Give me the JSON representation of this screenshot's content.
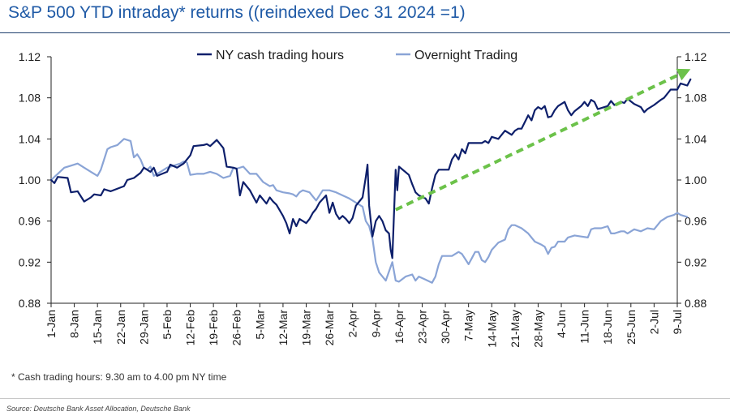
{
  "title": "S&P 500 YTD intraday* returns ((reindexed Dec 31 2024 =1)",
  "footnote": "* Cash trading hours: 9.30 am to 4.00 pm NY time",
  "source": "Source: Deutsche Bank Asset Allocation, Deutsche Bank",
  "colors": {
    "ny_series": "#0d1f6b",
    "overnight_series": "#8aa4d6",
    "trend_arrow": "#6cc24a",
    "title": "#1f5aa6"
  },
  "chart_data": {
    "type": "line",
    "title": "S&P 500 YTD intraday* returns ((reindexed Dec 31 2024 =1)",
    "xlabel": "",
    "ylabel": "",
    "ylim": [
      0.88,
      1.12
    ],
    "yticks": [
      "0.88",
      "0.92",
      "0.96",
      "1.00",
      "1.04",
      "1.08",
      "1.12"
    ],
    "categories": [
      "1-Jan",
      "8-Jan",
      "15-Jan",
      "22-Jan",
      "29-Jan",
      "5-Feb",
      "12-Feb",
      "19-Feb",
      "26-Feb",
      "5-Mar",
      "12-Mar",
      "19-Mar",
      "26-Mar",
      "2-Apr",
      "9-Apr",
      "16-Apr",
      "23-Apr",
      "30-Apr",
      "7-May",
      "14-May",
      "21-May",
      "28-May",
      "4-Jun",
      "11-Jun",
      "18-Jun",
      "25-Jun",
      "2-Jul",
      "9-Jul"
    ],
    "legend": [
      "NY cash trading hours",
      "Overnight Trading"
    ],
    "legend_position": "top-center",
    "x_unit": "days since 1-Jan",
    "series": [
      {
        "name": "NY cash trading hours",
        "points": [
          [
            0,
            1.0
          ],
          [
            1,
            0.997
          ],
          [
            2,
            1.003
          ],
          [
            5,
            1.002
          ],
          [
            6,
            0.988
          ],
          [
            8,
            0.989
          ],
          [
            10,
            0.979
          ],
          [
            12,
            0.983
          ],
          [
            13,
            0.986
          ],
          [
            15,
            0.985
          ],
          [
            16,
            0.991
          ],
          [
            18,
            0.989
          ],
          [
            22,
            0.994
          ],
          [
            23,
            1.0
          ],
          [
            25,
            1.002
          ],
          [
            27,
            1.007
          ],
          [
            28,
            1.012
          ],
          [
            30,
            1.008
          ],
          [
            31,
            1.012
          ],
          [
            32,
            1.004
          ],
          [
            35,
            1.008
          ],
          [
            36,
            1.015
          ],
          [
            38,
            1.012
          ],
          [
            40,
            1.016
          ],
          [
            42,
            1.024
          ],
          [
            43,
            1.033
          ],
          [
            46,
            1.034
          ],
          [
            47,
            1.035
          ],
          [
            48,
            1.033
          ],
          [
            50,
            1.039
          ],
          [
            52,
            1.031
          ],
          [
            53,
            1.013
          ],
          [
            55,
            1.012
          ],
          [
            56,
            1.011
          ],
          [
            57,
            0.985
          ],
          [
            58,
            0.998
          ],
          [
            60,
            0.99
          ],
          [
            62,
            0.978
          ],
          [
            63,
            0.985
          ],
          [
            64,
            0.981
          ],
          [
            65,
            0.977
          ],
          [
            66,
            0.983
          ],
          [
            67,
            0.979
          ],
          [
            68,
            0.976
          ],
          [
            70,
            0.965
          ],
          [
            71,
            0.958
          ],
          [
            72,
            0.948
          ],
          [
            73,
            0.962
          ],
          [
            74,
            0.955
          ],
          [
            75,
            0.962
          ],
          [
            77,
            0.958
          ],
          [
            78,
            0.962
          ],
          [
            79,
            0.968
          ],
          [
            80,
            0.972
          ],
          [
            81,
            0.978
          ],
          [
            83,
            0.985
          ],
          [
            84,
            0.968
          ],
          [
            85,
            0.978
          ],
          [
            86,
            0.967
          ],
          [
            87,
            0.962
          ],
          [
            88,
            0.965
          ],
          [
            89,
            0.962
          ],
          [
            90,
            0.958
          ],
          [
            91,
            0.963
          ],
          [
            92,
            0.975
          ],
          [
            94,
            0.983
          ],
          [
            95,
            1.003
          ],
          [
            95.5,
            1.015
          ],
          [
            96,
            0.975
          ],
          [
            97,
            0.945
          ],
          [
            98,
            0.96
          ],
          [
            99,
            0.965
          ],
          [
            100,
            0.96
          ],
          [
            101,
            0.951
          ],
          [
            102,
            0.948
          ],
          [
            102.5,
            0.932
          ],
          [
            103,
            0.924
          ],
          [
            104,
            1.01
          ],
          [
            104.5,
            0.99
          ],
          [
            105,
            1.013
          ],
          [
            108,
            1.005
          ],
          [
            109,
            0.996
          ],
          [
            110,
            0.988
          ],
          [
            111,
            0.985
          ],
          [
            113,
            0.982
          ],
          [
            114,
            0.977
          ],
          [
            115,
            0.992
          ],
          [
            116,
            1.005
          ],
          [
            117,
            1.01
          ],
          [
            120,
            1.01
          ],
          [
            121,
            1.02
          ],
          [
            122,
            1.025
          ],
          [
            123,
            1.02
          ],
          [
            124,
            1.03
          ],
          [
            125,
            1.026
          ],
          [
            126,
            1.036
          ],
          [
            130,
            1.036
          ],
          [
            131,
            1.038
          ],
          [
            132,
            1.036
          ],
          [
            133,
            1.042
          ],
          [
            135,
            1.04
          ],
          [
            137,
            1.048
          ],
          [
            139,
            1.044
          ],
          [
            140,
            1.048
          ],
          [
            141,
            1.05
          ],
          [
            142,
            1.05
          ],
          [
            144,
            1.063
          ],
          [
            145,
            1.058
          ],
          [
            146,
            1.068
          ],
          [
            147,
            1.071
          ],
          [
            148,
            1.069
          ],
          [
            149,
            1.072
          ],
          [
            150,
            1.061
          ],
          [
            151,
            1.062
          ],
          [
            152,
            1.068
          ],
          [
            153,
            1.072
          ],
          [
            155,
            1.076
          ],
          [
            156,
            1.068
          ],
          [
            157,
            1.063
          ],
          [
            158,
            1.067
          ],
          [
            160,
            1.072
          ],
          [
            161,
            1.076
          ],
          [
            162,
            1.072
          ],
          [
            163,
            1.078
          ],
          [
            164,
            1.076
          ],
          [
            165,
            1.069
          ],
          [
            166,
            1.07
          ],
          [
            168,
            1.072
          ],
          [
            169,
            1.077
          ],
          [
            170,
            1.073
          ],
          [
            172,
            1.076
          ],
          [
            173,
            1.075
          ],
          [
            174,
            1.079
          ],
          [
            176,
            1.074
          ],
          [
            178,
            1.071
          ],
          [
            179,
            1.066
          ],
          [
            180,
            1.069
          ],
          [
            182,
            1.073
          ],
          [
            184,
            1.078
          ],
          [
            185,
            1.08
          ],
          [
            187,
            1.088
          ],
          [
            189,
            1.088
          ],
          [
            190,
            1.094
          ],
          [
            192,
            1.092
          ],
          [
            193,
            1.098
          ]
        ]
      },
      {
        "name": "Overnight Trading",
        "points": [
          [
            0,
            1.0
          ],
          [
            2,
            1.006
          ],
          [
            4,
            1.012
          ],
          [
            6,
            1.014
          ],
          [
            8,
            1.016
          ],
          [
            10,
            1.012
          ],
          [
            12,
            1.008
          ],
          [
            14,
            1.004
          ],
          [
            15,
            1.01
          ],
          [
            17,
            1.03
          ],
          [
            18,
            1.032
          ],
          [
            20,
            1.034
          ],
          [
            22,
            1.04
          ],
          [
            24,
            1.038
          ],
          [
            25,
            1.022
          ],
          [
            26,
            1.025
          ],
          [
            27,
            1.02
          ],
          [
            28,
            1.012
          ],
          [
            29,
            1.01
          ],
          [
            30,
            1.013
          ],
          [
            31,
            1.004
          ],
          [
            33,
            1.008
          ],
          [
            35,
            1.012
          ],
          [
            37,
            1.014
          ],
          [
            39,
            1.016
          ],
          [
            40,
            1.018
          ],
          [
            41,
            1.017
          ],
          [
            42,
            1.005
          ],
          [
            44,
            1.006
          ],
          [
            46,
            1.006
          ],
          [
            48,
            1.008
          ],
          [
            50,
            1.006
          ],
          [
            52,
            1.002
          ],
          [
            54,
            1.004
          ],
          [
            55,
            1.012
          ],
          [
            56,
            1.011
          ],
          [
            58,
            1.013
          ],
          [
            60,
            1.006
          ],
          [
            62,
            1.006
          ],
          [
            64,
            0.998
          ],
          [
            66,
            0.994
          ],
          [
            67,
            0.995
          ],
          [
            68,
            0.99
          ],
          [
            70,
            0.988
          ],
          [
            72,
            0.987
          ],
          [
            73,
            0.986
          ],
          [
            74,
            0.984
          ],
          [
            75,
            0.988
          ],
          [
            76,
            0.99
          ],
          [
            78,
            0.988
          ],
          [
            79,
            0.984
          ],
          [
            80,
            0.98
          ],
          [
            82,
            0.99
          ],
          [
            84,
            0.99
          ],
          [
            86,
            0.988
          ],
          [
            88,
            0.985
          ],
          [
            90,
            0.982
          ],
          [
            92,
            0.978
          ],
          [
            94,
            0.974
          ],
          [
            95,
            0.96
          ],
          [
            96,
            0.955
          ],
          [
            97,
            0.943
          ],
          [
            98,
            0.92
          ],
          [
            99,
            0.91
          ],
          [
            100,
            0.906
          ],
          [
            101,
            0.902
          ],
          [
            103,
            0.92
          ],
          [
            104,
            0.902
          ],
          [
            105,
            0.901
          ],
          [
            107,
            0.906
          ],
          [
            109,
            0.908
          ],
          [
            110,
            0.902
          ],
          [
            111,
            0.906
          ],
          [
            113,
            0.903
          ],
          [
            115,
            0.9
          ],
          [
            116,
            0.906
          ],
          [
            117,
            0.918
          ],
          [
            118,
            0.926
          ],
          [
            119,
            0.926
          ],
          [
            121,
            0.926
          ],
          [
            123,
            0.93
          ],
          [
            124,
            0.928
          ],
          [
            126,
            0.918
          ],
          [
            127,
            0.924
          ],
          [
            128,
            0.93
          ],
          [
            129,
            0.93
          ],
          [
            130,
            0.922
          ],
          [
            131,
            0.92
          ],
          [
            132,
            0.925
          ],
          [
            133,
            0.932
          ],
          [
            135,
            0.939
          ],
          [
            137,
            0.942
          ],
          [
            138,
            0.952
          ],
          [
            139,
            0.956
          ],
          [
            140,
            0.956
          ],
          [
            142,
            0.953
          ],
          [
            144,
            0.948
          ],
          [
            146,
            0.94
          ],
          [
            148,
            0.937
          ],
          [
            149,
            0.935
          ],
          [
            150,
            0.928
          ],
          [
            151,
            0.934
          ],
          [
            152,
            0.935
          ],
          [
            153,
            0.94
          ],
          [
            155,
            0.94
          ],
          [
            156,
            0.944
          ],
          [
            158,
            0.946
          ],
          [
            160,
            0.945
          ],
          [
            162,
            0.944
          ],
          [
            163,
            0.952
          ],
          [
            164,
            0.953
          ],
          [
            166,
            0.953
          ],
          [
            168,
            0.955
          ],
          [
            169,
            0.948
          ],
          [
            170,
            0.948
          ],
          [
            172,
            0.95
          ],
          [
            173,
            0.95
          ],
          [
            174,
            0.948
          ],
          [
            176,
            0.952
          ],
          [
            178,
            0.95
          ],
          [
            180,
            0.953
          ],
          [
            182,
            0.952
          ],
          [
            184,
            0.96
          ],
          [
            186,
            0.964
          ],
          [
            188,
            0.966
          ],
          [
            189,
            0.968
          ],
          [
            190,
            0.966
          ],
          [
            191,
            0.965
          ],
          [
            192,
            0.964
          ]
        ]
      }
    ],
    "annotations": [
      {
        "type": "arrow",
        "style": "dashed",
        "from": [
          104,
          0.971
        ],
        "to": [
          193,
          1.108
        ]
      }
    ]
  }
}
